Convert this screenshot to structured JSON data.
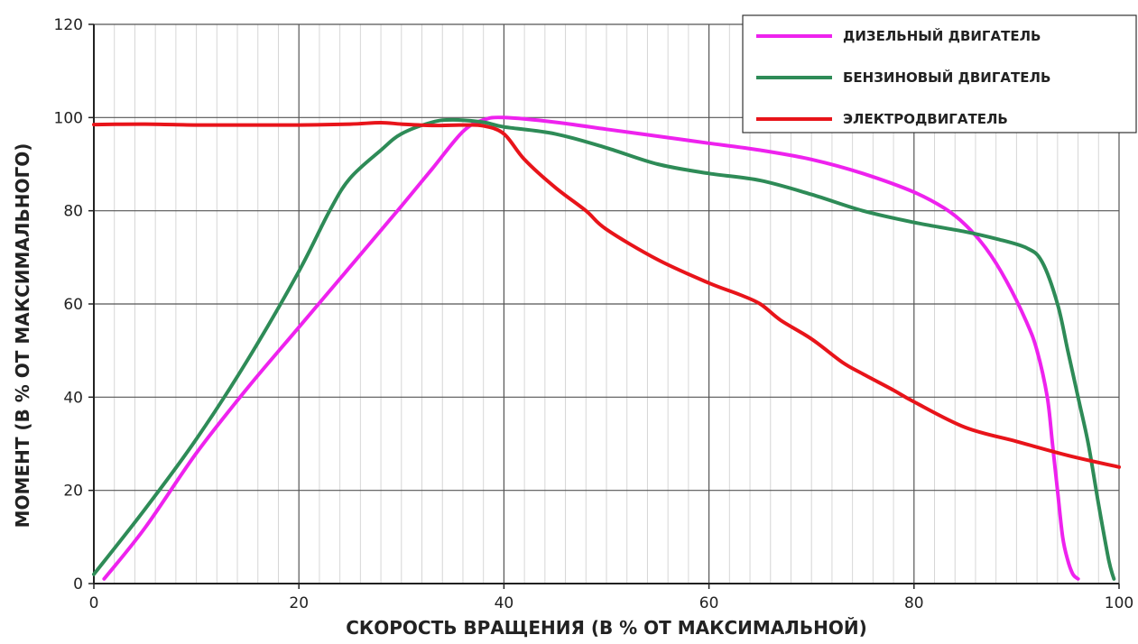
{
  "chart_data": {
    "type": "line",
    "xlabel": "СКОРОСТЬ ВРАЩЕНИЯ (В % ОТ МАКСИМАЛЬНОЙ)",
    "ylabel": "МОМЕНТ (В % ОТ МАКСИМАЛЬНОГО)",
    "xlim": [
      0,
      100
    ],
    "ylim": [
      0,
      120
    ],
    "xticks": [
      "0",
      "20",
      "40",
      "60",
      "80",
      "100"
    ],
    "yticks": [
      "0",
      "20",
      "40",
      "60",
      "80",
      "100",
      "120"
    ],
    "grid": true,
    "legend_position": "top-right",
    "series": [
      {
        "name": "ДИЗЕЛЬНЫЙ ДВИГАТЕЛЬ",
        "color": "#ee22ee",
        "points": [
          [
            1,
            1
          ],
          [
            5,
            12
          ],
          [
            10,
            28
          ],
          [
            15,
            42
          ],
          [
            20,
            55
          ],
          [
            25,
            68
          ],
          [
            30,
            81
          ],
          [
            33,
            89
          ],
          [
            36,
            97
          ],
          [
            38,
            99.5
          ],
          [
            40,
            100
          ],
          [
            45,
            99
          ],
          [
            50,
            97.5
          ],
          [
            55,
            96
          ],
          [
            60,
            94.5
          ],
          [
            65,
            93
          ],
          [
            70,
            91
          ],
          [
            75,
            88
          ],
          [
            80,
            84
          ],
          [
            83,
            80.5
          ],
          [
            85,
            77
          ],
          [
            87,
            72
          ],
          [
            89,
            65
          ],
          [
            91,
            56
          ],
          [
            92,
            50
          ],
          [
            93,
            40
          ],
          [
            93.5,
            30
          ],
          [
            94,
            20
          ],
          [
            94.5,
            10
          ],
          [
            95,
            5
          ],
          [
            95.5,
            2
          ],
          [
            96,
            1
          ]
        ]
      },
      {
        "name": "БЕНЗИНОВЫЙ ДВИГАТЕЛЬ",
        "color": "#2e8b57",
        "points": [
          [
            0,
            2
          ],
          [
            5,
            16
          ],
          [
            10,
            31
          ],
          [
            15,
            48
          ],
          [
            20,
            67
          ],
          [
            23,
            80
          ],
          [
            25,
            87
          ],
          [
            28,
            93
          ],
          [
            30,
            96.5
          ],
          [
            33,
            99
          ],
          [
            35,
            99.5
          ],
          [
            38,
            99
          ],
          [
            40,
            98
          ],
          [
            45,
            96.5
          ],
          [
            50,
            93.5
          ],
          [
            55,
            90
          ],
          [
            60,
            88
          ],
          [
            65,
            86.5
          ],
          [
            70,
            83.5
          ],
          [
            75,
            80
          ],
          [
            80,
            77.5
          ],
          [
            85,
            75.5
          ],
          [
            88,
            74
          ],
          [
            91,
            72
          ],
          [
            92.5,
            69
          ],
          [
            94,
            60
          ],
          [
            95,
            50
          ],
          [
            96,
            40
          ],
          [
            97,
            30
          ],
          [
            98,
            17
          ],
          [
            99,
            5
          ],
          [
            99.5,
            1
          ]
        ]
      },
      {
        "name": "ЭЛЕКТРОДВИГАТЕЛЬ",
        "color": "#e8141a",
        "points": [
          [
            0,
            98.5
          ],
          [
            5,
            98.6
          ],
          [
            10,
            98.4
          ],
          [
            15,
            98.4
          ],
          [
            20,
            98.4
          ],
          [
            25,
            98.6
          ],
          [
            28,
            98.9
          ],
          [
            30,
            98.6
          ],
          [
            33,
            98.3
          ],
          [
            36,
            98.4
          ],
          [
            38,
            98.2
          ],
          [
            40,
            96.5
          ],
          [
            42,
            91
          ],
          [
            45,
            85
          ],
          [
            48,
            80
          ],
          [
            50,
            76
          ],
          [
            55,
            69.5
          ],
          [
            60,
            64.5
          ],
          [
            63,
            62
          ],
          [
            65,
            60
          ],
          [
            67,
            56.5
          ],
          [
            70,
            52.5
          ],
          [
            73,
            47.5
          ],
          [
            75,
            45
          ],
          [
            78,
            41.5
          ],
          [
            80,
            39
          ],
          [
            85,
            33.5
          ],
          [
            90,
            30.5
          ],
          [
            95,
            27.5
          ],
          [
            100,
            25
          ]
        ]
      }
    ]
  }
}
